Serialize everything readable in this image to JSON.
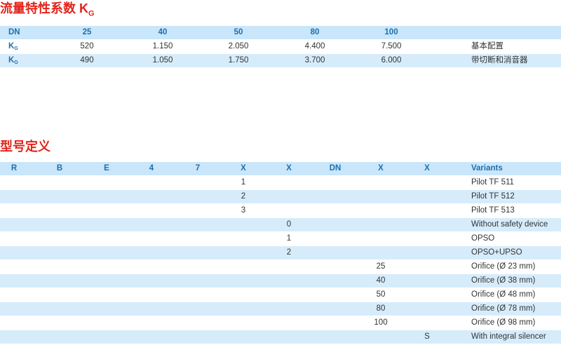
{
  "kg_section": {
    "title": {
      "text": "流量特性系数 K",
      "sub": "G"
    },
    "header": [
      "DN",
      "25",
      "40",
      "50",
      "80",
      "100"
    ],
    "rows": [
      {
        "label": "K",
        "sub": "G",
        "values": [
          "520",
          "1.150",
          "2.050",
          "4.400",
          "7.500"
        ],
        "note": "基本配置"
      },
      {
        "label": "K",
        "sub": "G",
        "values": [
          "490",
          "1.050",
          "1.750",
          "3.700",
          "6.000"
        ],
        "note": "带切断和消音器"
      }
    ]
  },
  "model_section": {
    "title": "型号定义",
    "variants_header": "Variants",
    "columns": [
      {
        "label": "R"
      },
      {
        "label": "B"
      },
      {
        "label": "E"
      },
      {
        "label": "4"
      },
      {
        "label": "7"
      },
      {
        "label": "X",
        "options": [
          {
            "code": "1",
            "variant": "Pilot TF 511"
          },
          {
            "code": "2",
            "variant": "Pilot TF 512"
          },
          {
            "code": "3",
            "variant": "Pilot TF 513"
          }
        ]
      },
      {
        "label": "X",
        "options": [
          {
            "code": "0",
            "variant": "Without safety device"
          },
          {
            "code": "1",
            "variant": "OPSO"
          },
          {
            "code": "2",
            "variant": "OPSO+UPSO"
          }
        ]
      },
      {
        "label": "DN"
      },
      {
        "label": "X",
        "options": [
          {
            "code": "25",
            "variant": "Orifice (Ø 23 mm)"
          },
          {
            "code": "40",
            "variant": "Orifice (Ø 38 mm)"
          },
          {
            "code": "50",
            "variant": "Orifice (Ø 48 mm)"
          },
          {
            "code": "80",
            "variant": "Orifice (Ø 78 mm)"
          },
          {
            "code": "100",
            "variant": "Orifice (Ø 98 mm)"
          }
        ]
      },
      {
        "label": "X",
        "options": [
          {
            "code": "S",
            "variant": "With integral silencer"
          }
        ]
      }
    ]
  }
}
